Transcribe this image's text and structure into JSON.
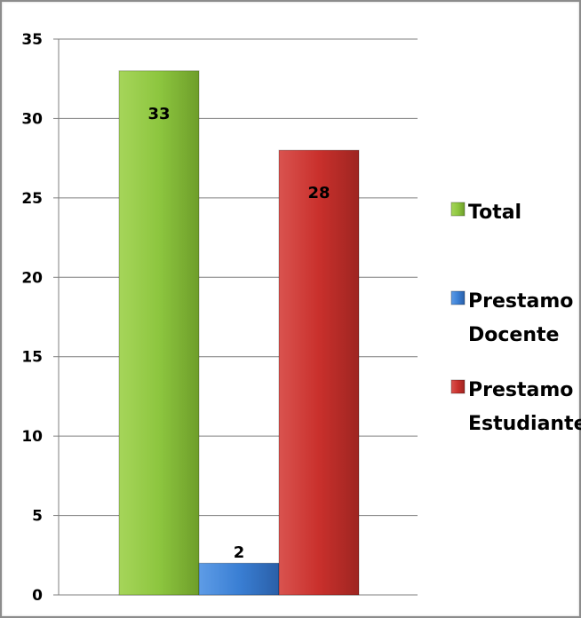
{
  "chart_data": {
    "type": "bar",
    "categories": [
      ""
    ],
    "series": [
      {
        "name": "Total",
        "values": [
          33
        ],
        "color": "#8dc63f",
        "legend_lines": [
          "Total"
        ]
      },
      {
        "name": "Prestamo Docente",
        "values": [
          2
        ],
        "color": "#3a7fd4",
        "legend_lines": [
          "Prestamo",
          "Docente"
        ]
      },
      {
        "name": "Prestamo Estudiante",
        "values": [
          28
        ],
        "color": "#c9302c",
        "legend_lines": [
          "Prestamo",
          "Estudiante"
        ]
      }
    ],
    "yticks": [
      0,
      5,
      10,
      15,
      20,
      25,
      30,
      35
    ],
    "ylim": [
      0,
      35
    ],
    "grid": true,
    "legend_position": "right"
  }
}
